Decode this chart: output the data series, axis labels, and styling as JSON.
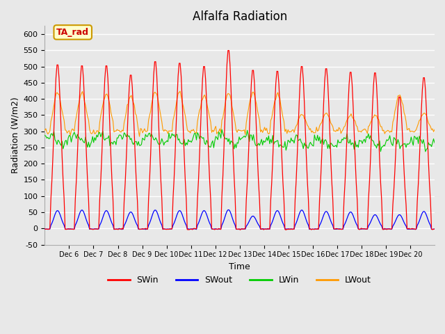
{
  "title": "Alfalfa Radiation",
  "ylabel": "Radiation (W/m2)",
  "xlabel": "Time",
  "ylim": [
    -50,
    625
  ],
  "yticks": [
    -50,
    0,
    50,
    100,
    150,
    200,
    250,
    300,
    350,
    400,
    450,
    500,
    550,
    600
  ],
  "background_color": "#e8e8e8",
  "plot_bg_color": "#e8e8e8",
  "grid_color": "#ffffff",
  "annotation_text": "TA_rad",
  "annotation_bg": "#ffffcc",
  "annotation_border": "#cc9900",
  "annotation_text_color": "#cc0000",
  "colors": {
    "SWin": "#ff0000",
    "SWout": "#0000ff",
    "LWin": "#00cc00",
    "LWout": "#ff9900"
  },
  "n_days": 16,
  "start_day": 5,
  "legend_labels": [
    "SWin",
    "SWout",
    "LWin",
    "LWout"
  ]
}
